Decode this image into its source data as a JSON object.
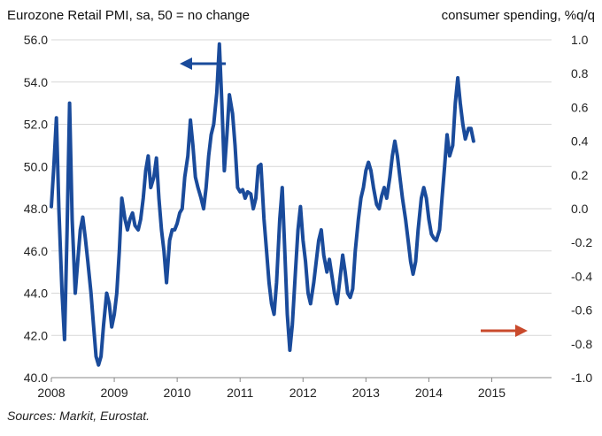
{
  "chart_data": {
    "type": "line",
    "title_left": "Eurozone Retail PMI, sa, 50 = no change",
    "title_right": "consumer spending, %q/q",
    "source": "Sources: Markit, Eurostat.",
    "x_ticks": [
      "2008",
      "2009",
      "2010",
      "2011",
      "2012",
      "2013",
      "2014",
      "2015"
    ],
    "xlim": [
      2008.0,
      2015.95
    ],
    "y_left": {
      "lim": [
        40,
        56
      ],
      "ticks": [
        "40.0",
        "42.0",
        "44.0",
        "46.0",
        "48.0",
        "50.0",
        "52.0",
        "54.0",
        "56.0"
      ]
    },
    "y_right": {
      "lim": [
        -1.0,
        1.0
      ],
      "ticks": [
        "-1.0",
        "-0.8",
        "-0.6",
        "-0.4",
        "-0.2",
        "0.0",
        "0.2",
        "0.4",
        "0.6",
        "0.8",
        "1.0"
      ]
    },
    "colors": {
      "pmi": "#1a4b9b",
      "spending": "#c94a2c"
    },
    "series": [
      {
        "axis": "left",
        "points": [
          [
            2008.0,
            48.1
          ],
          [
            2008.04,
            50.0
          ],
          [
            2008.08,
            52.3
          ],
          [
            2008.12,
            48.0
          ],
          [
            2008.17,
            44.0
          ],
          [
            2008.21,
            41.8
          ],
          [
            2008.25,
            47.0
          ],
          [
            2008.29,
            53.0
          ],
          [
            2008.33,
            47.5
          ],
          [
            2008.38,
            44.0
          ],
          [
            2008.42,
            45.5
          ],
          [
            2008.46,
            47.0
          ],
          [
            2008.5,
            47.6
          ],
          [
            2008.54,
            46.6
          ],
          [
            2008.58,
            45.5
          ],
          [
            2008.63,
            44.0
          ],
          [
            2008.67,
            42.5
          ],
          [
            2008.71,
            41.0
          ],
          [
            2008.75,
            40.6
          ],
          [
            2008.79,
            41.0
          ],
          [
            2008.83,
            42.5
          ],
          [
            2008.88,
            44.0
          ],
          [
            2008.92,
            43.5
          ],
          [
            2008.96,
            42.4
          ],
          [
            2009.0,
            43.0
          ],
          [
            2009.04,
            44.0
          ],
          [
            2009.08,
            46.0
          ],
          [
            2009.12,
            48.5
          ],
          [
            2009.17,
            47.5
          ],
          [
            2009.21,
            47.0
          ],
          [
            2009.25,
            47.5
          ],
          [
            2009.29,
            47.8
          ],
          [
            2009.33,
            47.2
          ],
          [
            2009.38,
            47.0
          ],
          [
            2009.42,
            47.5
          ],
          [
            2009.46,
            48.5
          ],
          [
            2009.5,
            49.8
          ],
          [
            2009.54,
            50.5
          ],
          [
            2009.58,
            49.0
          ],
          [
            2009.63,
            49.5
          ],
          [
            2009.67,
            50.4
          ],
          [
            2009.71,
            48.5
          ],
          [
            2009.75,
            47.0
          ],
          [
            2009.79,
            46.0
          ],
          [
            2009.83,
            44.5
          ],
          [
            2009.88,
            46.5
          ],
          [
            2009.92,
            47.0
          ],
          [
            2009.96,
            47.0
          ],
          [
            2010.0,
            47.3
          ],
          [
            2010.04,
            47.8
          ],
          [
            2010.08,
            48.0
          ],
          [
            2010.12,
            49.5
          ],
          [
            2010.17,
            50.5
          ],
          [
            2010.21,
            52.2
          ],
          [
            2010.25,
            51.0
          ],
          [
            2010.29,
            49.5
          ],
          [
            2010.33,
            49.0
          ],
          [
            2010.38,
            48.5
          ],
          [
            2010.42,
            48.0
          ],
          [
            2010.46,
            49.0
          ],
          [
            2010.5,
            50.5
          ],
          [
            2010.54,
            51.5
          ],
          [
            2010.58,
            52.0
          ],
          [
            2010.63,
            53.5
          ],
          [
            2010.67,
            55.8
          ],
          [
            2010.71,
            53.0
          ],
          [
            2010.75,
            49.8
          ],
          [
            2010.79,
            51.5
          ],
          [
            2010.83,
            53.4
          ],
          [
            2010.88,
            52.5
          ],
          [
            2010.92,
            51.0
          ],
          [
            2010.96,
            49.0
          ],
          [
            2011.0,
            48.8
          ],
          [
            2011.04,
            48.9
          ],
          [
            2011.08,
            48.5
          ],
          [
            2011.12,
            48.8
          ],
          [
            2011.17,
            48.7
          ],
          [
            2011.21,
            48.0
          ],
          [
            2011.25,
            48.5
          ],
          [
            2011.29,
            50.0
          ],
          [
            2011.33,
            50.1
          ],
          [
            2011.38,
            47.5
          ],
          [
            2011.42,
            46.0
          ],
          [
            2011.46,
            44.5
          ],
          [
            2011.5,
            43.5
          ],
          [
            2011.54,
            43.0
          ],
          [
            2011.58,
            44.5
          ],
          [
            2011.63,
            47.5
          ],
          [
            2011.67,
            49.0
          ],
          [
            2011.71,
            46.0
          ],
          [
            2011.75,
            43.0
          ],
          [
            2011.79,
            41.3
          ],
          [
            2011.83,
            42.5
          ],
          [
            2011.88,
            45.0
          ],
          [
            2011.92,
            47.0
          ],
          [
            2011.96,
            48.1
          ],
          [
            2012.0,
            46.5
          ],
          [
            2012.04,
            45.5
          ],
          [
            2012.08,
            44.0
          ],
          [
            2012.12,
            43.5
          ],
          [
            2012.17,
            44.5
          ],
          [
            2012.21,
            45.5
          ],
          [
            2012.25,
            46.5
          ],
          [
            2012.29,
            47.0
          ],
          [
            2012.33,
            45.8
          ],
          [
            2012.38,
            45.0
          ],
          [
            2012.42,
            45.6
          ],
          [
            2012.46,
            44.8
          ],
          [
            2012.5,
            44.0
          ],
          [
            2012.54,
            43.5
          ],
          [
            2012.58,
            44.5
          ],
          [
            2012.63,
            45.8
          ],
          [
            2012.67,
            45.0
          ],
          [
            2012.71,
            44.0
          ],
          [
            2012.75,
            43.8
          ],
          [
            2012.79,
            44.2
          ],
          [
            2012.83,
            46.0
          ],
          [
            2012.88,
            47.5
          ],
          [
            2012.92,
            48.5
          ],
          [
            2012.96,
            49.0
          ],
          [
            2013.0,
            49.8
          ],
          [
            2013.04,
            50.2
          ],
          [
            2013.08,
            49.8
          ],
          [
            2013.12,
            49.0
          ],
          [
            2013.17,
            48.2
          ],
          [
            2013.21,
            48.0
          ],
          [
            2013.25,
            48.6
          ],
          [
            2013.29,
            49.0
          ],
          [
            2013.33,
            48.5
          ],
          [
            2013.38,
            49.5
          ],
          [
            2013.42,
            50.5
          ],
          [
            2013.46,
            51.2
          ],
          [
            2013.5,
            50.5
          ],
          [
            2013.54,
            49.5
          ],
          [
            2013.58,
            48.5
          ],
          [
            2013.63,
            47.5
          ],
          [
            2013.67,
            46.5
          ],
          [
            2013.71,
            45.5
          ],
          [
            2013.75,
            44.9
          ],
          [
            2013.79,
            45.5
          ],
          [
            2013.83,
            47.0
          ],
          [
            2013.88,
            48.5
          ],
          [
            2013.92,
            49.0
          ],
          [
            2013.96,
            48.5
          ],
          [
            2014.0,
            47.5
          ],
          [
            2014.04,
            46.8
          ],
          [
            2014.08,
            46.6
          ],
          [
            2014.12,
            46.5
          ],
          [
            2014.17,
            47.0
          ],
          [
            2014.21,
            48.5
          ],
          [
            2014.25,
            50.0
          ],
          [
            2014.29,
            51.5
          ],
          [
            2014.33,
            50.5
          ],
          [
            2014.38,
            51.0
          ],
          [
            2014.42,
            53.0
          ],
          [
            2014.46,
            54.2
          ],
          [
            2014.5,
            53.0
          ],
          [
            2014.54,
            52.0
          ],
          [
            2014.58,
            51.3
          ],
          [
            2014.63,
            51.8
          ],
          [
            2014.67,
            51.8
          ],
          [
            2014.71,
            51.2
          ]
        ]
      },
      {
        "axis": "right",
        "points": []
      }
    ]
  }
}
